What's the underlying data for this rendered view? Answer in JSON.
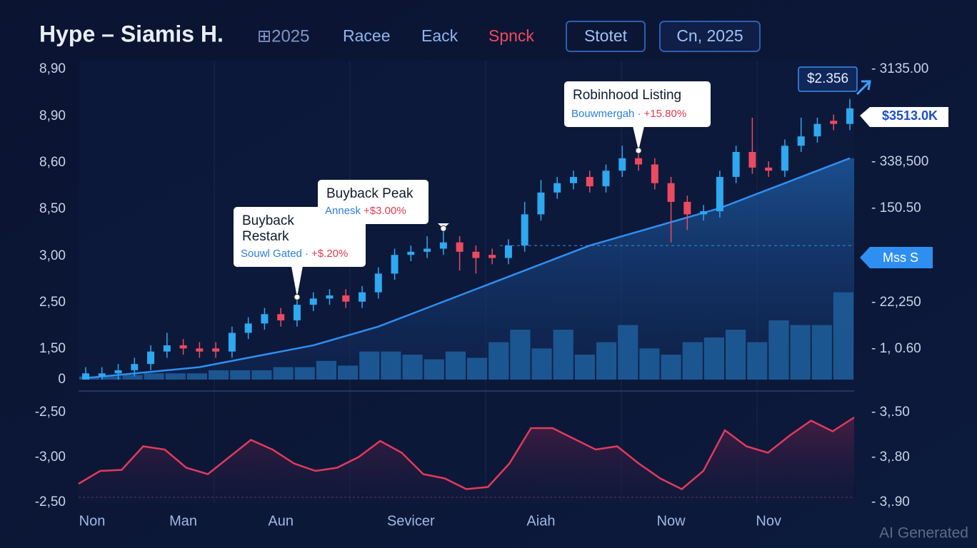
{
  "header": {
    "title": "Hype – Siamis H.",
    "year": "⊞2025",
    "nav": [
      "Racee",
      "Eack",
      "Spnck"
    ],
    "button": "Stotet",
    "date": "Cn, 2025"
  },
  "chart_data": {
    "type": "candlestick",
    "categories": [
      "Non",
      null,
      null,
      null,
      null,
      null,
      "Man",
      null,
      null,
      null,
      null,
      null,
      "Aun",
      null,
      null,
      null,
      null,
      null,
      null,
      null,
      "Sevicer",
      null,
      null,
      null,
      null,
      null,
      null,
      null,
      "Aiah",
      null,
      null,
      null,
      null,
      null,
      null,
      null,
      "Now",
      null,
      null,
      null,
      null,
      null,
      "Nov",
      null,
      null,
      null,
      null,
      null
    ],
    "open": [
      0,
      1,
      2,
      3,
      5,
      9,
      11,
      10,
      10,
      9,
      15,
      18,
      21,
      19,
      24,
      26,
      27,
      25,
      28,
      34,
      40,
      41,
      42,
      44,
      41,
      40,
      39,
      43,
      53,
      60,
      63,
      65,
      62,
      67,
      71,
      69,
      63,
      57,
      53,
      54,
      65,
      73,
      68,
      67,
      75,
      78,
      83,
      82
    ],
    "close": [
      2,
      2,
      3,
      5,
      9,
      11,
      10,
      9,
      9,
      15,
      18,
      21,
      19,
      24,
      26,
      27,
      25,
      28,
      34,
      40,
      41,
      42,
      44,
      41,
      39,
      39,
      43,
      53,
      60,
      63,
      65,
      62,
      67,
      71,
      69,
      63,
      57,
      53,
      54,
      65,
      73,
      68,
      67,
      75,
      78,
      82,
      82,
      87
    ],
    "high": [
      4,
      4,
      5,
      7,
      11,
      15,
      13,
      12,
      12,
      17,
      20,
      23,
      23,
      26,
      28,
      29,
      29,
      30,
      36,
      42,
      43,
      46,
      48,
      46,
      43,
      42,
      45,
      57,
      64,
      65,
      67,
      67,
      69,
      75,
      73,
      71,
      65,
      59,
      56,
      67,
      75,
      84,
      70,
      77,
      84,
      84,
      85,
      90
    ],
    "low": [
      0,
      0,
      0,
      1,
      3,
      7,
      8,
      7,
      7,
      7,
      13,
      16,
      17,
      17,
      22,
      24,
      23,
      23,
      26,
      32,
      38,
      39,
      40,
      35,
      34,
      37,
      37,
      41,
      51,
      58,
      61,
      60,
      60,
      65,
      67,
      61,
      44,
      48,
      51,
      52,
      63,
      66,
      65,
      65,
      73,
      76,
      80,
      80
    ],
    "up_color": "#2ea8ee",
    "down_color": "#ec4a60",
    "ylim": [
      0,
      100
    ],
    "y_labels": [
      "8,90",
      "8,90",
      "8,60",
      "8,50",
      "3,00",
      "2,50",
      "1,50",
      "0"
    ],
    "y2_labels": [
      "- 3135.00",
      "- 338,500",
      "- 150.50",
      "- 22,250",
      "- 1, 0.60"
    ],
    "ma": {
      "color": "#2f8ff0",
      "values": [
        0.5,
        1,
        1.5,
        2,
        2.5,
        3,
        3.5,
        4,
        5,
        6,
        7,
        8,
        9,
        10,
        11,
        12.5,
        14,
        15.5,
        17,
        19,
        21,
        23,
        25,
        27,
        29,
        31,
        33,
        35,
        37,
        39,
        41,
        43,
        44.5,
        46,
        47.5,
        49,
        50.5,
        52,
        53.5,
        55,
        57,
        59,
        61,
        63,
        65,
        67,
        69,
        71
      ]
    },
    "volume": {
      "color": "#1f5f9c",
      "ylim": [
        0,
        100
      ],
      "values": [
        1,
        1,
        1.5,
        2,
        2,
        2,
        3,
        3,
        3,
        4,
        4,
        6,
        4.5,
        9,
        9,
        8,
        6.5,
        9,
        7,
        12,
        16,
        10,
        16,
        8,
        12,
        17.5,
        10,
        8,
        12,
        13.5,
        16,
        12,
        19,
        17.5,
        17.5,
        28
      ]
    },
    "oscillator": {
      "color": "#e23a5c",
      "ylim": [
        0,
        100
      ],
      "values": [
        18,
        30,
        31,
        53,
        50,
        33,
        27,
        43,
        59,
        50,
        37,
        30,
        33,
        43,
        58,
        47,
        27,
        23,
        13,
        15,
        37,
        70,
        70,
        60,
        50,
        53,
        37,
        23,
        13,
        30,
        68,
        53,
        47,
        63,
        77,
        67,
        80
      ],
      "y_labels": [
        "-2,50",
        "-3,00",
        "-2,50"
      ],
      "y2_labels": [
        "- 3,.50",
        "- 3,.80",
        "- 3,.90"
      ]
    },
    "annotations": [
      {
        "title": "Buyback\nRestark",
        "sub": "Souwl Gated ·",
        "delta": "+$.20%"
      },
      {
        "title": "Buyback Peak",
        "sub": "Annesk",
        "delta": "+$3.00%"
      },
      {
        "title": "Robinhood Listing",
        "sub": "Bouwmergah ·",
        "delta": "+15.80%"
      }
    ],
    "price_tags": [
      "$2.356",
      "$3513.0K",
      "Mss S"
    ]
  },
  "footer": "AI Generated"
}
